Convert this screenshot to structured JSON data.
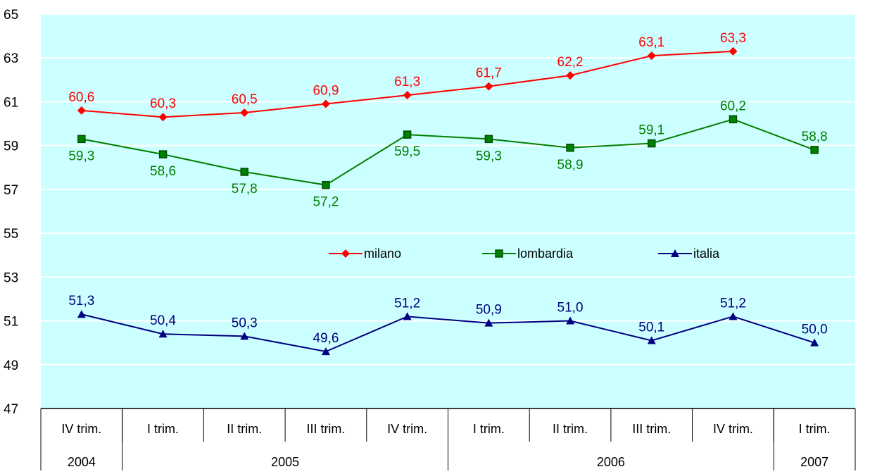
{
  "chart_data": {
    "type": "line",
    "title": "",
    "xlabel": "",
    "ylabel": "",
    "ylim": [
      47,
      65
    ],
    "yticks": [
      47,
      49,
      51,
      53,
      55,
      57,
      59,
      61,
      63,
      65
    ],
    "grid": true,
    "plot_background": "#ccffff",
    "legend_position": "center",
    "categories": [
      "IV trim.",
      "I trim.",
      "II trim.",
      "III trim.",
      "IV trim.",
      "I trim.",
      "II trim.",
      "III trim.",
      "IV trim.",
      "I trim."
    ],
    "years": [
      {
        "label": "2004",
        "span": 1
      },
      {
        "label": "2005",
        "span": 4
      },
      {
        "label": "2006",
        "span": 4
      },
      {
        "label": "2007",
        "span": 1
      }
    ],
    "series": [
      {
        "name": "milano",
        "color": "#ff0000",
        "marker": "diamond",
        "label_pos": "above",
        "values": [
          60.6,
          60.3,
          60.5,
          60.9,
          61.3,
          61.7,
          62.2,
          63.1,
          63.3,
          null
        ],
        "labels": [
          "60,6",
          "60,3",
          "60,5",
          "60,9",
          "61,3",
          "61,7",
          "62,2",
          "63,1",
          "63,3",
          null
        ]
      },
      {
        "name": "lombardia",
        "color": "#008000",
        "marker": "square",
        "label_pos": "below",
        "values": [
          59.3,
          58.6,
          57.8,
          57.2,
          59.5,
          59.3,
          58.9,
          59.1,
          60.2,
          58.8
        ],
        "labels": [
          "59,3",
          "58,6",
          "57,8",
          "57,2",
          "59,5",
          "59,3",
          "58,9",
          "59,1",
          "60,2",
          "58,8"
        ],
        "label_pos_overrides": {
          "7": "above",
          "8": "above",
          "9": "above"
        }
      },
      {
        "name": "italia",
        "color": "#000080",
        "marker": "triangle",
        "label_pos": "above",
        "values": [
          51.3,
          50.4,
          50.3,
          49.6,
          51.2,
          50.9,
          51.0,
          50.1,
          51.2,
          50.0
        ],
        "labels": [
          "51,3",
          "50,4",
          "50,3",
          "49,6",
          "51,2",
          "50,9",
          "51,0",
          "50,1",
          "51,2",
          "50,0"
        ]
      }
    ]
  }
}
